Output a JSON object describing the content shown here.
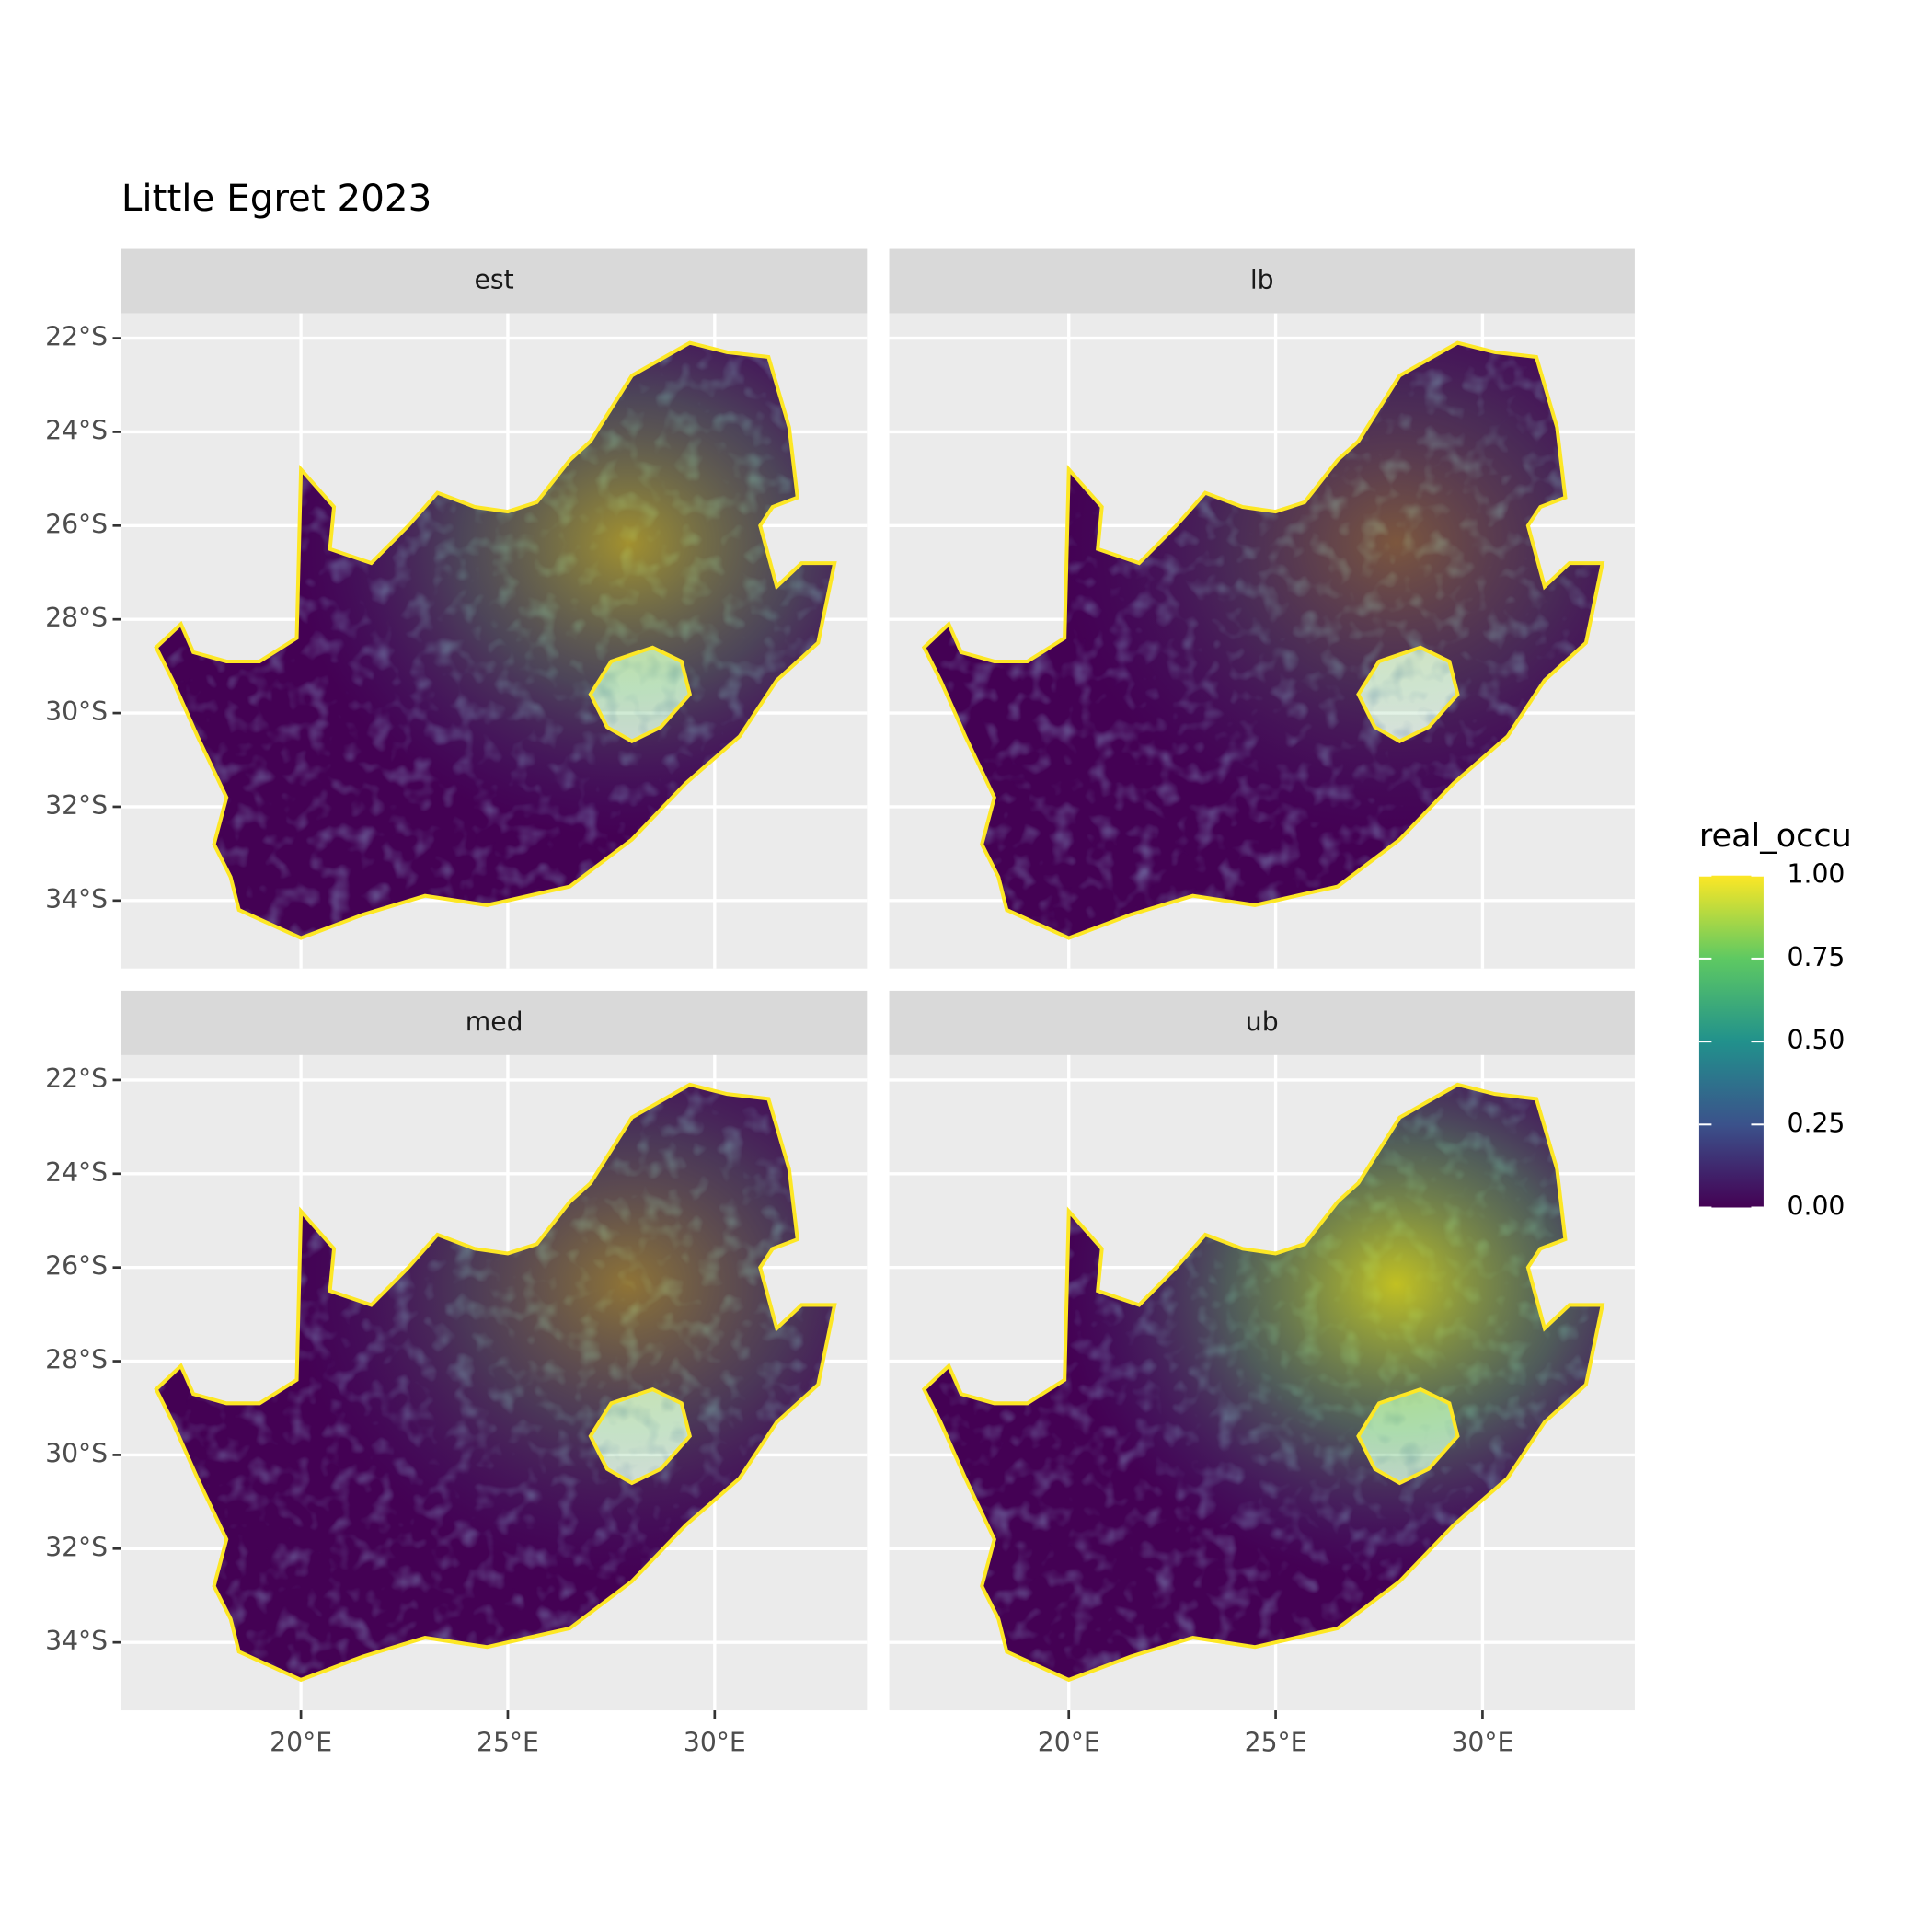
{
  "chart_data": {
    "type": "raster-map",
    "title": "Little Egret 2023",
    "facets": [
      "est",
      "lb",
      "med",
      "ub"
    ],
    "xlim": [
      15.66,
      33.68
    ],
    "ylim": [
      -35.45,
      -21.47
    ],
    "xticks": [
      {
        "value": 20,
        "label": "20°E"
      },
      {
        "value": 25,
        "label": "25°E"
      },
      {
        "value": 30,
        "label": "30°E"
      }
    ],
    "yticks": [
      {
        "value": -22,
        "label": "22°S"
      },
      {
        "value": -24,
        "label": "24°S"
      },
      {
        "value": -26,
        "label": "26°S"
      },
      {
        "value": -28,
        "label": "28°S"
      },
      {
        "value": -30,
        "label": "30°S"
      },
      {
        "value": -32,
        "label": "32°S"
      },
      {
        "value": -34,
        "label": "34°S"
      }
    ],
    "grid": true,
    "legend_title": "real_occu",
    "colorbar_lim": [
      0,
      1
    ],
    "colorbar_ticks": [
      {
        "value": 0,
        "label": "0.00"
      },
      {
        "value": 0.25,
        "label": "0.25"
      },
      {
        "value": 0.5,
        "label": "0.50"
      },
      {
        "value": 0.75,
        "label": "0.75"
      },
      {
        "value": 1,
        "label": "1.00"
      }
    ]
  }
}
